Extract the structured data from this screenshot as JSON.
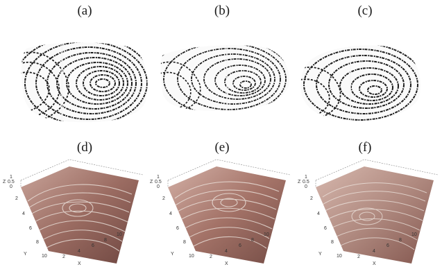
{
  "figure": {
    "panels": [
      {
        "label": "(a)",
        "kind": "fingerprint-2d"
      },
      {
        "label": "(b)",
        "kind": "fingerprint-2d"
      },
      {
        "label": "(c)",
        "kind": "fingerprint-2d"
      },
      {
        "label": "(d)",
        "kind": "fingerprint-3d-surface"
      },
      {
        "label": "(e)",
        "kind": "fingerprint-3d-surface"
      },
      {
        "label": "(f)",
        "kind": "fingerprint-3d-surface"
      }
    ],
    "surface_axes": {
      "z_label": "Z",
      "z_ticks": [
        "1",
        "0.5",
        "0"
      ],
      "y_label": "Y",
      "y_ticks": [
        "2",
        "4",
        "6",
        "8",
        "10"
      ],
      "x_label": "X",
      "x_ticks": [
        "2",
        "4",
        "6",
        "8",
        "10"
      ]
    },
    "colors": {
      "ink": "#1b1b1b",
      "skin_light": "#d8b6ab",
      "skin_dark": "#7a5248",
      "ridge": "#f2ece6"
    }
  }
}
